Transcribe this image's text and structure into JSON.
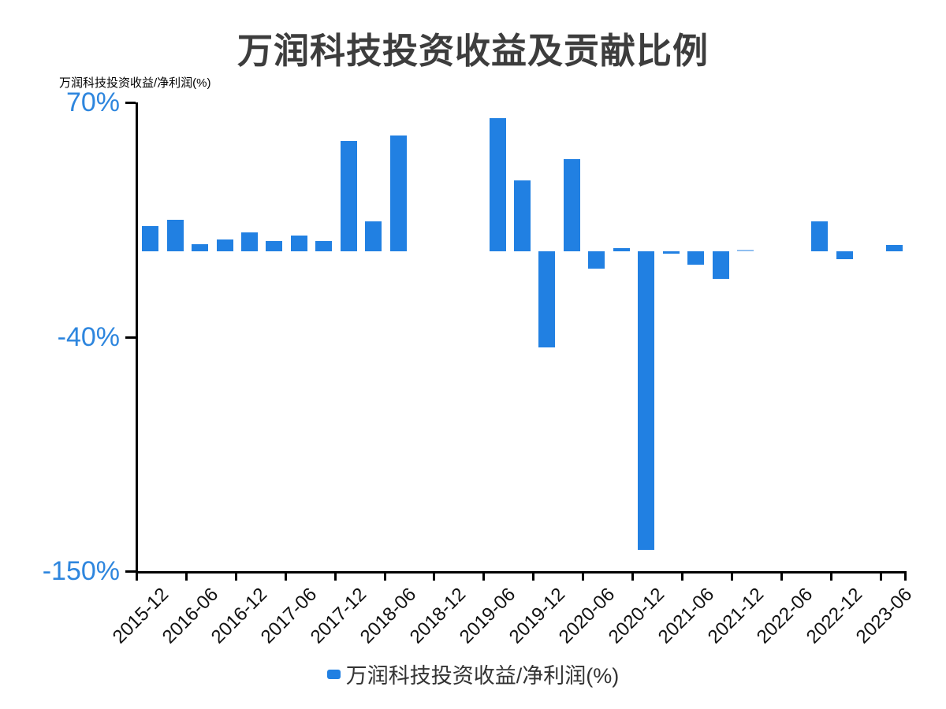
{
  "title": "万润科技投资收益及贡献比例",
  "y_axis_name": "万润科技投资收益/净利润(%)",
  "legend": {
    "label": "万润科技投资收益/净利润(%)"
  },
  "colors": {
    "bar": "#2180e2",
    "y_tick_label": "#2e86de",
    "x_tick_label": "#111111",
    "title": "#3d3d3d",
    "axis_line": "#000000",
    "legend_text": "#333333"
  },
  "chart_data": {
    "type": "bar",
    "title": "万润科技投资收益及贡献比例",
    "series_name": "万润科技投资收益/净利润(%)",
    "y_axis_name": "万润科技投资收益/净利润(%)",
    "ylim": [
      -150,
      70
    ],
    "y_ticks": [
      70,
      -40,
      -150
    ],
    "y_tick_labels": [
      "70%",
      "-40%",
      "-150%"
    ],
    "grid": false,
    "legend_position": "bottom",
    "x": [
      "2015-12",
      "2016-03",
      "2016-06",
      "2016-09",
      "2016-12",
      "2017-03",
      "2017-06",
      "2017-09",
      "2017-12",
      "2018-03",
      "2018-06",
      "2018-09",
      "2018-12",
      "2019-03",
      "2019-06",
      "2019-09",
      "2019-12",
      "2020-03",
      "2020-06",
      "2020-09",
      "2020-12",
      "2021-03",
      "2021-06",
      "2021-09",
      "2021-12",
      "2022-03",
      "2022-06",
      "2022-09",
      "2022-12",
      "2023-03",
      "2023-06"
    ],
    "values": [
      12,
      15,
      3.5,
      5.5,
      9,
      5,
      7.5,
      5,
      52,
      14,
      54.5,
      0,
      0,
      0,
      62.5,
      33.5,
      -45,
      43.5,
      -8,
      1.5,
      -140,
      -1,
      -6,
      -13,
      0.3,
      0,
      0,
      14,
      -3.5,
      0,
      3
    ],
    "x_tick_labels": [
      "2015-12",
      "2016-06",
      "2016-12",
      "2017-06",
      "2017-12",
      "2018-06",
      "2018-12",
      "2019-06",
      "2019-12",
      "2020-06",
      "2020-12",
      "2021-06",
      "2021-12",
      "2022-06",
      "2022-12",
      "2023-06"
    ]
  }
}
